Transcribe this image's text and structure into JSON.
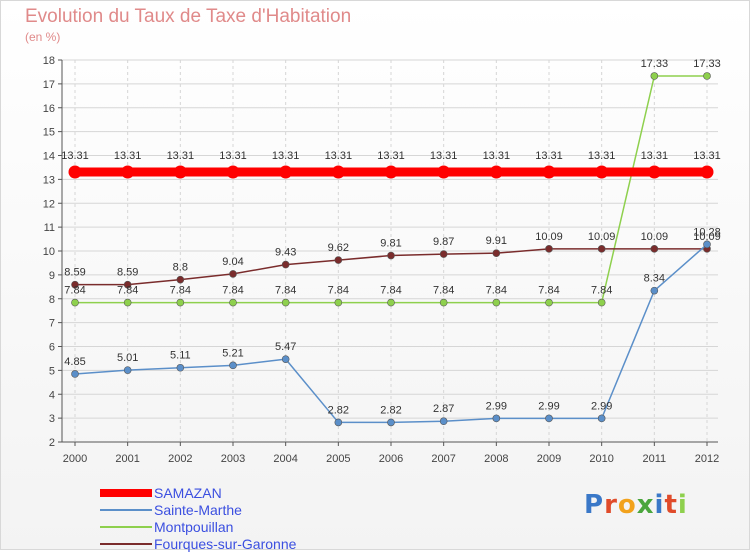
{
  "header": {
    "title": "Evolution du Taux de Taxe d'Habitation",
    "subtitle": "(en %)"
  },
  "chart_data": {
    "type": "line",
    "x": [
      "2000",
      "2001",
      "2002",
      "2003",
      "2004",
      "2005",
      "2006",
      "2007",
      "2008",
      "2009",
      "2010",
      "2011",
      "2012"
    ],
    "y_ticks": [
      "2",
      "3",
      "4",
      "5",
      "6",
      "7",
      "8",
      "9",
      "10",
      "11",
      "12",
      "13",
      "14",
      "15",
      "16",
      "17",
      "18"
    ],
    "ylim": [
      2,
      18
    ],
    "grid": true,
    "series": [
      {
        "name": "SAMAZAN",
        "color": "#ff0000",
        "values": [
          13.31,
          13.31,
          13.31,
          13.31,
          13.31,
          13.31,
          13.31,
          13.31,
          13.31,
          13.31,
          13.31,
          13.31,
          13.31
        ],
        "labels": [
          "13.31",
          "13.31",
          "13.31",
          "13.31",
          "13.31",
          "13.31",
          "13.31",
          "13.31",
          "13.31",
          "13.31",
          "13.31",
          "13.31",
          "13.31"
        ]
      },
      {
        "name": "Sainte-Marthe",
        "color": "#5b8fc9",
        "values": [
          4.85,
          5.01,
          5.11,
          5.21,
          5.47,
          2.82,
          2.82,
          2.87,
          2.99,
          2.99,
          2.99,
          8.34,
          10.28
        ],
        "labels": [
          "4.85",
          "5.01",
          "5.11",
          "5.21",
          "5.47",
          "2.82",
          "2.82",
          "2.87",
          "2.99",
          "2.99",
          "2.99",
          "8.34",
          "10.28"
        ]
      },
      {
        "name": "Montpouillan",
        "color": "#8ed04d",
        "values": [
          7.84,
          7.84,
          7.84,
          7.84,
          7.84,
          7.84,
          7.84,
          7.84,
          7.84,
          7.84,
          7.84,
          17.33,
          17.33
        ],
        "labels": [
          "7.84",
          "7.84",
          "7.84",
          "7.84",
          "7.84",
          "7.84",
          "7.84",
          "7.84",
          "7.84",
          "7.84",
          "7.84",
          "17.33",
          "17.33"
        ]
      },
      {
        "name": "Fourques-sur-Garonne",
        "color": "#7a2c2c",
        "values": [
          8.59,
          8.59,
          8.8,
          9.04,
          9.43,
          9.62,
          9.81,
          9.87,
          9.91,
          10.09,
          10.09,
          10.09,
          10.09
        ],
        "labels": [
          "8.59",
          "8.59",
          "8.8",
          "9.04",
          "9.43",
          "9.62",
          "9.81",
          "9.87",
          "9.91",
          "10.09",
          "10.09",
          "10.09",
          "10.09"
        ]
      }
    ]
  },
  "legend": {
    "items": [
      "SAMAZAN",
      "Sainte-Marthe",
      "Montpouillan",
      "Fourques-sur-Garonne"
    ]
  },
  "logo": {
    "text": "Proxiti",
    "letter_colors": [
      "#3a78c8",
      "#e04b2a",
      "#f2a21c",
      "#4aa63c",
      "#3a78c8",
      "#e04b2a",
      "#8ed04d"
    ]
  }
}
